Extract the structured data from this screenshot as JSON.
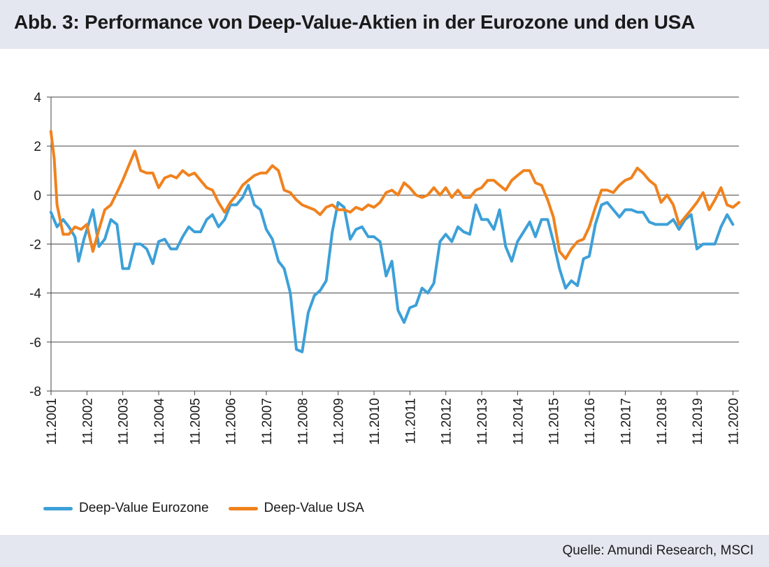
{
  "header": {
    "title": "Abb. 3: Performance von Deep-Value-Aktien in der Eurozone und den USA"
  },
  "footer": {
    "source": "Quelle: Amundi Research, MSCI"
  },
  "colors": {
    "eurozone": "#3da0d8",
    "usa": "#f0821e",
    "grid": "#333333",
    "header_bg": "#e4e7f0"
  },
  "chart_data": {
    "type": "line",
    "title": "",
    "xlabel": "",
    "ylabel": "",
    "ylim": [
      -8,
      4
    ],
    "yticks": [
      "4",
      "2",
      "0",
      "-2",
      "-4",
      "-6",
      "-8"
    ],
    "xticks": [
      "11.2001",
      "11.2002",
      "11.2003",
      "11.2004",
      "11.2005",
      "11.2006",
      "11.2007",
      "11.2008",
      "11.2009",
      "11.2010",
      "11.2011",
      "11.2012",
      "11.2013",
      "11.2014",
      "11.2015",
      "11.2016",
      "11.2017",
      "11.2018",
      "11.2019",
      "11.2020"
    ],
    "x_start": 2001.833,
    "x_end": 2021.0,
    "grid": true,
    "legend_position": "bottom-left",
    "series": [
      {
        "name": "Deep-Value Eurozone",
        "color": "#3da0d8",
        "points": [
          [
            2001.83,
            -0.7
          ],
          [
            2002.0,
            -1.3
          ],
          [
            2002.17,
            -1.0
          ],
          [
            2002.33,
            -1.3
          ],
          [
            2002.5,
            -1.7
          ],
          [
            2002.6,
            -2.7
          ],
          [
            2002.75,
            -1.8
          ],
          [
            2003.0,
            -0.6
          ],
          [
            2003.17,
            -2.1
          ],
          [
            2003.33,
            -1.8
          ],
          [
            2003.5,
            -1.0
          ],
          [
            2003.67,
            -1.2
          ],
          [
            2003.83,
            -3.0
          ],
          [
            2004.0,
            -3.0
          ],
          [
            2004.17,
            -2.0
          ],
          [
            2004.33,
            -2.0
          ],
          [
            2004.5,
            -2.2
          ],
          [
            2004.67,
            -2.8
          ],
          [
            2004.83,
            -1.9
          ],
          [
            2005.0,
            -1.8
          ],
          [
            2005.17,
            -2.2
          ],
          [
            2005.33,
            -2.2
          ],
          [
            2005.5,
            -1.7
          ],
          [
            2005.67,
            -1.3
          ],
          [
            2005.83,
            -1.5
          ],
          [
            2006.0,
            -1.5
          ],
          [
            2006.17,
            -1.0
          ],
          [
            2006.33,
            -0.8
          ],
          [
            2006.5,
            -1.3
          ],
          [
            2006.67,
            -1.0
          ],
          [
            2006.83,
            -0.4
          ],
          [
            2007.0,
            -0.4
          ],
          [
            2007.17,
            -0.1
          ],
          [
            2007.33,
            0.4
          ],
          [
            2007.5,
            -0.4
          ],
          [
            2007.67,
            -0.6
          ],
          [
            2007.83,
            -1.4
          ],
          [
            2008.0,
            -1.8
          ],
          [
            2008.17,
            -2.7
          ],
          [
            2008.33,
            -3.0
          ],
          [
            2008.5,
            -4.0
          ],
          [
            2008.67,
            -6.3
          ],
          [
            2008.83,
            -6.4
          ],
          [
            2009.0,
            -4.8
          ],
          [
            2009.17,
            -4.1
          ],
          [
            2009.33,
            -3.9
          ],
          [
            2009.5,
            -3.5
          ],
          [
            2009.67,
            -1.5
          ],
          [
            2009.83,
            -0.3
          ],
          [
            2010.0,
            -0.5
          ],
          [
            2010.17,
            -1.8
          ],
          [
            2010.33,
            -1.4
          ],
          [
            2010.5,
            -1.3
          ],
          [
            2010.67,
            -1.7
          ],
          [
            2010.83,
            -1.7
          ],
          [
            2011.0,
            -1.9
          ],
          [
            2011.17,
            -3.3
          ],
          [
            2011.33,
            -2.7
          ],
          [
            2011.5,
            -4.7
          ],
          [
            2011.67,
            -5.2
          ],
          [
            2011.83,
            -4.6
          ],
          [
            2012.0,
            -4.5
          ],
          [
            2012.17,
            -3.8
          ],
          [
            2012.33,
            -4.0
          ],
          [
            2012.5,
            -3.6
          ],
          [
            2012.67,
            -1.9
          ],
          [
            2012.83,
            -1.6
          ],
          [
            2013.0,
            -1.9
          ],
          [
            2013.17,
            -1.3
          ],
          [
            2013.33,
            -1.5
          ],
          [
            2013.5,
            -1.6
          ],
          [
            2013.67,
            -0.4
          ],
          [
            2013.83,
            -1.0
          ],
          [
            2014.0,
            -1.0
          ],
          [
            2014.17,
            -1.4
          ],
          [
            2014.33,
            -0.6
          ],
          [
            2014.5,
            -2.1
          ],
          [
            2014.67,
            -2.7
          ],
          [
            2014.83,
            -1.9
          ],
          [
            2015.0,
            -1.5
          ],
          [
            2015.17,
            -1.1
          ],
          [
            2015.33,
            -1.7
          ],
          [
            2015.5,
            -1.0
          ],
          [
            2015.67,
            -1.0
          ],
          [
            2015.83,
            -1.9
          ],
          [
            2016.0,
            -3.0
          ],
          [
            2016.17,
            -3.8
          ],
          [
            2016.33,
            -3.5
          ],
          [
            2016.5,
            -3.7
          ],
          [
            2016.67,
            -2.6
          ],
          [
            2016.83,
            -2.5
          ],
          [
            2017.0,
            -1.2
          ],
          [
            2017.17,
            -0.4
          ],
          [
            2017.33,
            -0.3
          ],
          [
            2017.5,
            -0.6
          ],
          [
            2017.67,
            -0.9
          ],
          [
            2017.83,
            -0.6
          ],
          [
            2018.0,
            -0.6
          ],
          [
            2018.17,
            -0.7
          ],
          [
            2018.33,
            -0.7
          ],
          [
            2018.5,
            -1.1
          ],
          [
            2018.67,
            -1.2
          ],
          [
            2018.83,
            -1.2
          ],
          [
            2019.0,
            -1.2
          ],
          [
            2019.17,
            -1.0
          ],
          [
            2019.33,
            -1.4
          ],
          [
            2019.5,
            -1.0
          ],
          [
            2019.67,
            -0.8
          ],
          [
            2019.83,
            -2.2
          ],
          [
            2020.0,
            -2.0
          ],
          [
            2020.17,
            -2.0
          ],
          [
            2020.33,
            -2.0
          ],
          [
            2020.5,
            -1.3
          ],
          [
            2020.67,
            -0.8
          ],
          [
            2020.83,
            -1.2
          ]
        ]
      },
      {
        "name": "Deep-Value USA",
        "color": "#f0821e",
        "points": [
          [
            2001.83,
            2.6
          ],
          [
            2001.92,
            1.5
          ],
          [
            2002.0,
            -0.4
          ],
          [
            2002.17,
            -1.6
          ],
          [
            2002.33,
            -1.6
          ],
          [
            2002.5,
            -1.3
          ],
          [
            2002.67,
            -1.4
          ],
          [
            2002.83,
            -1.2
          ],
          [
            2003.0,
            -2.3
          ],
          [
            2003.17,
            -1.4
          ],
          [
            2003.33,
            -0.6
          ],
          [
            2003.5,
            -0.4
          ],
          [
            2003.67,
            0.1
          ],
          [
            2003.83,
            0.6
          ],
          [
            2004.0,
            1.2
          ],
          [
            2004.17,
            1.8
          ],
          [
            2004.33,
            1.0
          ],
          [
            2004.5,
            0.9
          ],
          [
            2004.67,
            0.9
          ],
          [
            2004.83,
            0.3
          ],
          [
            2005.0,
            0.7
          ],
          [
            2005.17,
            0.8
          ],
          [
            2005.33,
            0.7
          ],
          [
            2005.5,
            1.0
          ],
          [
            2005.67,
            0.8
          ],
          [
            2005.83,
            0.9
          ],
          [
            2006.0,
            0.6
          ],
          [
            2006.17,
            0.3
          ],
          [
            2006.33,
            0.2
          ],
          [
            2006.5,
            -0.3
          ],
          [
            2006.67,
            -0.7
          ],
          [
            2006.83,
            -0.3
          ],
          [
            2007.0,
            0.0
          ],
          [
            2007.17,
            0.4
          ],
          [
            2007.33,
            0.6
          ],
          [
            2007.5,
            0.8
          ],
          [
            2007.67,
            0.9
          ],
          [
            2007.83,
            0.9
          ],
          [
            2008.0,
            1.2
          ],
          [
            2008.17,
            1.0
          ],
          [
            2008.33,
            0.2
          ],
          [
            2008.5,
            0.1
          ],
          [
            2008.67,
            -0.2
          ],
          [
            2008.83,
            -0.4
          ],
          [
            2009.0,
            -0.5
          ],
          [
            2009.17,
            -0.6
          ],
          [
            2009.33,
            -0.8
          ],
          [
            2009.5,
            -0.5
          ],
          [
            2009.67,
            -0.4
          ],
          [
            2009.83,
            -0.6
          ],
          [
            2010.0,
            -0.6
          ],
          [
            2010.17,
            -0.7
          ],
          [
            2010.33,
            -0.5
          ],
          [
            2010.5,
            -0.6
          ],
          [
            2010.67,
            -0.4
          ],
          [
            2010.83,
            -0.5
          ],
          [
            2011.0,
            -0.3
          ],
          [
            2011.17,
            0.1
          ],
          [
            2011.33,
            0.2
          ],
          [
            2011.5,
            0.0
          ],
          [
            2011.67,
            0.5
          ],
          [
            2011.83,
            0.3
          ],
          [
            2012.0,
            0.0
          ],
          [
            2012.17,
            -0.1
          ],
          [
            2012.33,
            0.0
          ],
          [
            2012.5,
            0.3
          ],
          [
            2012.67,
            0.0
          ],
          [
            2012.83,
            0.3
          ],
          [
            2013.0,
            -0.1
          ],
          [
            2013.17,
            0.2
          ],
          [
            2013.33,
            -0.1
          ],
          [
            2013.5,
            -0.1
          ],
          [
            2013.67,
            0.2
          ],
          [
            2013.83,
            0.3
          ],
          [
            2014.0,
            0.6
          ],
          [
            2014.17,
            0.6
          ],
          [
            2014.33,
            0.4
          ],
          [
            2014.5,
            0.2
          ],
          [
            2014.67,
            0.6
          ],
          [
            2014.83,
            0.8
          ],
          [
            2015.0,
            1.0
          ],
          [
            2015.17,
            1.0
          ],
          [
            2015.33,
            0.5
          ],
          [
            2015.5,
            0.4
          ],
          [
            2015.67,
            -0.2
          ],
          [
            2015.83,
            -0.9
          ],
          [
            2016.0,
            -2.3
          ],
          [
            2016.17,
            -2.6
          ],
          [
            2016.33,
            -2.2
          ],
          [
            2016.5,
            -1.9
          ],
          [
            2016.67,
            -1.8
          ],
          [
            2016.83,
            -1.3
          ],
          [
            2017.0,
            -0.5
          ],
          [
            2017.17,
            0.2
          ],
          [
            2017.33,
            0.2
          ],
          [
            2017.5,
            0.1
          ],
          [
            2017.67,
            0.4
          ],
          [
            2017.83,
            0.6
          ],
          [
            2018.0,
            0.7
          ],
          [
            2018.17,
            1.1
          ],
          [
            2018.33,
            0.9
          ],
          [
            2018.5,
            0.6
          ],
          [
            2018.67,
            0.4
          ],
          [
            2018.83,
            -0.3
          ],
          [
            2019.0,
            0.0
          ],
          [
            2019.17,
            -0.4
          ],
          [
            2019.33,
            -1.2
          ],
          [
            2019.5,
            -0.9
          ],
          [
            2019.67,
            -0.6
          ],
          [
            2019.83,
            -0.3
          ],
          [
            2020.0,
            0.1
          ],
          [
            2020.17,
            -0.6
          ],
          [
            2020.33,
            -0.2
          ],
          [
            2020.5,
            0.3
          ],
          [
            2020.67,
            -0.4
          ],
          [
            2020.83,
            -0.5
          ],
          [
            2021.0,
            -0.3
          ]
        ]
      }
    ]
  }
}
